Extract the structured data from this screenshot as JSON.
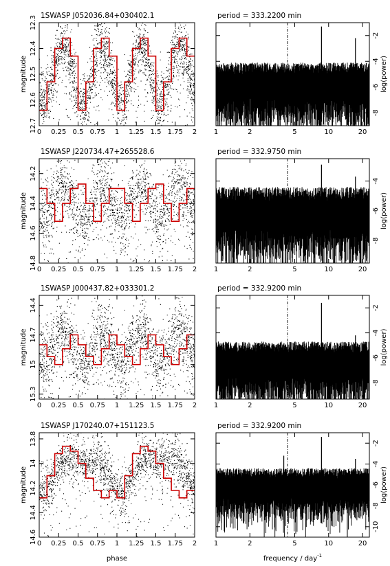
{
  "chart_data": [
    {
      "type": "scatter",
      "title": "1SWASP J052036.84+030402.1",
      "xlabel": "",
      "ylabel": "magnitude",
      "xlim": [
        0,
        2
      ],
      "ylim": [
        12.7,
        12.3
      ],
      "y_inverted": true,
      "x_ticks": [
        "0",
        "0.25",
        "0.5",
        "0.75",
        "1",
        "1.25",
        "1.5",
        "1.75",
        "2"
      ],
      "y_ticks": [
        12.3,
        12.4,
        12.5,
        12.6,
        12.7
      ],
      "y_tick_labels": [
        "12.3",
        "12.4",
        "12.5",
        "12.6",
        "12.7"
      ],
      "series": [
        {
          "kind": "points",
          "color": "#000000",
          "model": {
            "mean": 12.5,
            "amplitude": 0.11,
            "harmonics": 2,
            "scatter": 0.05
          }
        },
        {
          "kind": "step",
          "color": "#cc0000",
          "x": [
            0,
            0.1,
            0.2,
            0.3,
            0.4,
            0.5,
            0.6,
            0.7,
            0.8,
            0.9,
            1.0
          ],
          "y": [
            12.64,
            12.53,
            12.4,
            12.36,
            12.43,
            12.64,
            12.53,
            12.4,
            12.36,
            12.43,
            12.64
          ]
        }
      ]
    },
    {
      "type": "line",
      "title": "period = 333.2200  min",
      "xlabel": "",
      "ylabel": "log(power)",
      "x_scale": "log",
      "xlim": [
        1,
        23
      ],
      "ylim": [
        -9,
        -1
      ],
      "x_ticks": [
        "1",
        "2",
        "5",
        "10",
        "20"
      ],
      "y_ticks": [
        -2,
        -4,
        -6,
        -8
      ],
      "y_tick_labels": [
        "-2",
        "-4",
        "-6",
        "-8"
      ],
      "marker_frequency": 4.32,
      "noise_level": -6.2,
      "peaks": [
        {
          "x": 8.64,
          "y": -1.3
        },
        {
          "x": 17.3,
          "y": -2.2
        },
        {
          "x": 4.32,
          "y": -4.5
        }
      ]
    },
    {
      "type": "scatter",
      "title": "1SWASP J220734.47+265528.6",
      "xlabel": "",
      "ylabel": "magnitude",
      "xlim": [
        0,
        2
      ],
      "ylim": [
        14.8,
        14.1
      ],
      "y_inverted": true,
      "x_ticks": [
        "0",
        "0.25",
        "0.5",
        "0.75",
        "1",
        "1.25",
        "1.5",
        "1.75",
        "2"
      ],
      "y_ticks": [
        14.2,
        14.4,
        14.6,
        14.8
      ],
      "y_tick_labels": [
        "14.2",
        "14.4",
        "14.6",
        "14.8"
      ],
      "series": [
        {
          "kind": "points",
          "color": "#000000",
          "model": {
            "mean": 14.39,
            "amplitude": 0.11,
            "harmonics": 2,
            "scatter": 0.1
          }
        },
        {
          "kind": "step",
          "color": "#cc0000",
          "x": [
            0,
            0.1,
            0.2,
            0.3,
            0.4,
            0.5,
            0.6,
            0.7,
            0.8,
            0.9,
            1.0
          ],
          "y": [
            14.3,
            14.4,
            14.52,
            14.4,
            14.3,
            14.27,
            14.4,
            14.52,
            14.4,
            14.3,
            14.3
          ]
        }
      ]
    },
    {
      "type": "line",
      "title": "period = 332.9750  min",
      "xlabel": "",
      "ylabel": "log(power)",
      "x_scale": "log",
      "xlim": [
        1,
        23
      ],
      "ylim": [
        -9.5,
        -2.5
      ],
      "x_ticks": [
        "1",
        "2",
        "5",
        "10",
        "20"
      ],
      "y_ticks": [
        -4,
        -6,
        -8
      ],
      "y_tick_labels": [
        "-4",
        "-6",
        "-8"
      ],
      "marker_frequency": 4.32,
      "noise_level": -6.5,
      "peaks": [
        {
          "x": 8.64,
          "y": -2.9
        },
        {
          "x": 17.3,
          "y": -3.7
        },
        {
          "x": 4.32,
          "y": -4.8
        }
      ]
    },
    {
      "type": "scatter",
      "title": "1SWASP J000437.82+033301.2",
      "xlabel": "",
      "ylabel": "magnitude",
      "xlim": [
        0,
        2
      ],
      "ylim": [
        15.35,
        14.3
      ],
      "y_inverted": true,
      "x_ticks": [
        "0",
        "0.25",
        "0.5",
        "0.75",
        "1",
        "1.25",
        "1.5",
        "1.75",
        "2"
      ],
      "y_ticks": [
        14.4,
        14.7,
        15.0,
        15.3
      ],
      "y_tick_labels": [
        "14.4",
        "14.7",
        "15",
        "15.3"
      ],
      "series": [
        {
          "kind": "points",
          "color": "#000000",
          "model": {
            "mean": 14.82,
            "amplitude": 0.16,
            "harmonics": 2,
            "scatter": 0.15
          }
        },
        {
          "kind": "step",
          "color": "#cc0000",
          "x": [
            0,
            0.1,
            0.2,
            0.3,
            0.4,
            0.5,
            0.6,
            0.7,
            0.8,
            0.9,
            1.0
          ],
          "y": [
            14.8,
            14.92,
            15.0,
            14.84,
            14.7,
            14.8,
            14.92,
            15.0,
            14.84,
            14.7,
            14.8
          ]
        }
      ]
    },
    {
      "type": "line",
      "title": "period = 332.9200  min",
      "xlabel": "",
      "ylabel": "log(power)",
      "x_scale": "log",
      "xlim": [
        1,
        23
      ],
      "ylim": [
        -9.3,
        -1
      ],
      "x_ticks": [
        "1",
        "2",
        "5",
        "10",
        "20"
      ],
      "y_ticks": [
        -2,
        -4,
        -6,
        -8
      ],
      "y_tick_labels": [
        "-2",
        "-4",
        "-6",
        "-8"
      ],
      "marker_frequency": 4.32,
      "noise_level": -6.8,
      "peaks": [
        {
          "x": 8.64,
          "y": -1.6
        },
        {
          "x": 17.3,
          "y": -4.2
        },
        {
          "x": 4.32,
          "y": -5.0
        }
      ]
    },
    {
      "type": "scatter",
      "title": "1SWASP J170240.07+151123.5",
      "xlabel": "phase",
      "ylabel": "magnitude",
      "xlim": [
        0,
        2
      ],
      "ylim": [
        14.6,
        13.75
      ],
      "y_inverted": true,
      "x_ticks": [
        "0",
        "0.25",
        "0.5",
        "0.75",
        "1",
        "1.25",
        "1.5",
        "1.75",
        "2"
      ],
      "y_ticks": [
        13.8,
        14.0,
        14.2,
        14.4,
        14.6
      ],
      "y_tick_labels": [
        "13.8",
        "14",
        "14.2",
        "14.4",
        "14.6"
      ],
      "series": [
        {
          "kind": "points",
          "color": "#000000",
          "model": {
            "mean": 14.05,
            "amplitude": 0.18,
            "harmonics": 1,
            "scatter": 0.08
          }
        },
        {
          "kind": "step",
          "color": "#cc0000",
          "x": [
            0,
            0.1,
            0.2,
            0.3,
            0.4,
            0.5,
            0.6,
            0.7,
            0.8,
            0.9,
            1.0
          ],
          "y": [
            14.28,
            14.1,
            13.92,
            13.86,
            13.9,
            14.0,
            14.12,
            14.22,
            14.28,
            14.22,
            14.28
          ]
        }
      ]
    },
    {
      "type": "line",
      "title": "period = 332.9200  min",
      "xlabel": "frequency  /  day",
      "xlabel_superscript": "-1",
      "ylabel": "log(power)",
      "x_scale": "log",
      "xlim": [
        1,
        23
      ],
      "ylim": [
        -11,
        -1
      ],
      "x_ticks": [
        "1",
        "2",
        "5",
        "10",
        "20"
      ],
      "y_ticks": [
        -2,
        -4,
        -6,
        -8,
        -10
      ],
      "y_tick_labels": [
        "-2",
        "-4",
        "-6",
        "-8",
        "-10"
      ],
      "marker_frequency": 4.32,
      "noise_level": -6.5,
      "peaks": [
        {
          "x": 8.64,
          "y": -1.4
        },
        {
          "x": 17.3,
          "y": -3.5
        },
        {
          "x": 4.0,
          "y": -3.2
        }
      ]
    }
  ]
}
